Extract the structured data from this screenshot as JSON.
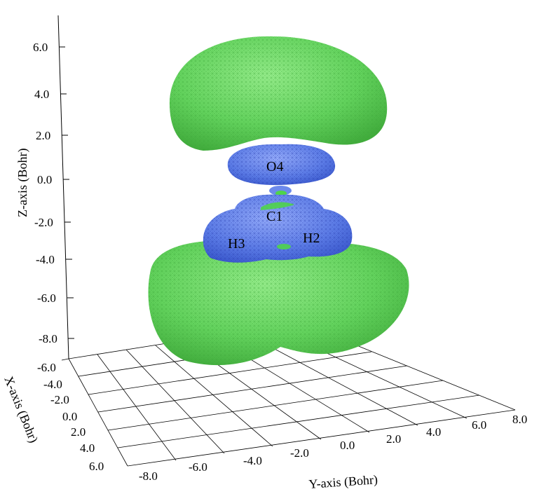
{
  "axes": {
    "z": {
      "title": "Z-axis (Bohr)",
      "ticks": [
        "6.0",
        "4.0",
        "2.0",
        "0.0",
        "-2.0",
        "-4.0",
        "-6.0",
        "-8.0"
      ]
    },
    "x": {
      "title": "X-axis (Bohr)",
      "ticks": [
        "-6.0",
        "-4.0",
        "-2.0",
        "0.0",
        "2.0",
        "4.0",
        "6.0"
      ]
    },
    "y": {
      "title": "Y-axis (Bohr)",
      "ticks": [
        "-8.0",
        "-6.0",
        "-4.0",
        "-2.0",
        "0.0",
        "2.0",
        "4.0",
        "6.0",
        "8.0"
      ]
    }
  },
  "atoms": [
    "O4",
    "C1",
    "H3",
    "H2"
  ],
  "colors": {
    "positive_lobe": "#62d45e",
    "negative_lobe": "#5a7ee6",
    "mesh_green": "#3ea83a",
    "mesh_blue": "#3046b8",
    "axis_line": "#000000"
  }
}
